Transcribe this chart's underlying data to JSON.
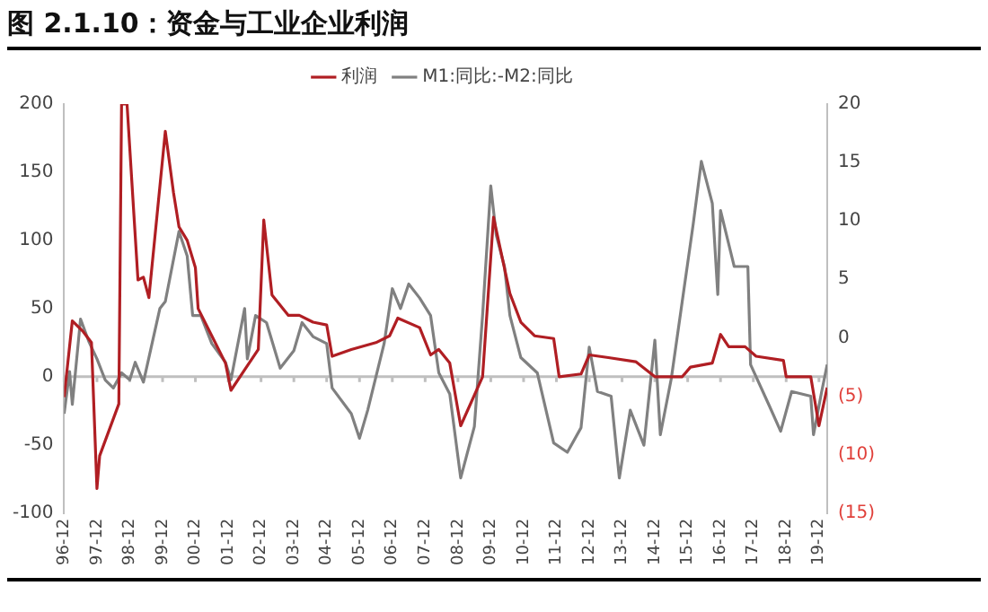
{
  "chart_data": {
    "type": "line",
    "title": "图 2.1.10：资金与工业企业利润",
    "legend": "top",
    "xlim": [
      "1996-12",
      "2020-03"
    ],
    "xticks": [
      {
        "value": "1996-12",
        "label": "96-12"
      },
      {
        "value": "1997-12",
        "label": "97-12"
      },
      {
        "value": "1998-12",
        "label": "98-12"
      },
      {
        "value": "1999-12",
        "label": "99-12"
      },
      {
        "value": "2000-12",
        "label": "00-12"
      },
      {
        "value": "2001-12",
        "label": "01-12"
      },
      {
        "value": "2002-12",
        "label": "02-12"
      },
      {
        "value": "2003-12",
        "label": "03-12"
      },
      {
        "value": "2004-12",
        "label": "04-12"
      },
      {
        "value": "2005-12",
        "label": "05-12"
      },
      {
        "value": "2006-12",
        "label": "06-12"
      },
      {
        "value": "2007-12",
        "label": "07-12"
      },
      {
        "value": "2008-12",
        "label": "08-12"
      },
      {
        "value": "2009-12",
        "label": "09-12"
      },
      {
        "value": "2010-12",
        "label": "10-12"
      },
      {
        "value": "2011-12",
        "label": "11-12"
      },
      {
        "value": "2012-12",
        "label": "12-12"
      },
      {
        "value": "2013-12",
        "label": "13-12"
      },
      {
        "value": "2014-12",
        "label": "14-12"
      },
      {
        "value": "2015-12",
        "label": "15-12"
      },
      {
        "value": "2016-12",
        "label": "16-12"
      },
      {
        "value": "2017-12",
        "label": "17-12"
      },
      {
        "value": "2018-12",
        "label": "18-12"
      },
      {
        "value": "2019-12",
        "label": "19-12"
      }
    ],
    "ylim": [
      -100,
      200
    ],
    "yticks": [
      -100,
      -50,
      0,
      50,
      100,
      150,
      200
    ],
    "y2lim": [
      -15,
      20
    ],
    "y2ticks": [
      {
        "value": -15,
        "label": "(15)"
      },
      {
        "value": -10,
        "label": "(10)"
      },
      {
        "value": -5,
        "label": "(5)"
      },
      0,
      5,
      10,
      15,
      20
    ],
    "ref_lines": [
      {
        "axis": "y",
        "value": 0,
        "color": "#bfbfbf"
      }
    ],
    "marker": "none",
    "line_style": "solid",
    "series": [
      {
        "name": "利润",
        "color": "#b01e23",
        "x": [
          "1996-12",
          "1997-03",
          "1997-07",
          "1997-10",
          "1997-12",
          "1998-01",
          "1998-08",
          "1998-09",
          "1998-11",
          "1999-03",
          "1999-05",
          "1999-07",
          "2000-01",
          "2000-04",
          "2000-06",
          "2000-09",
          "2000-12",
          "2001-01",
          "2001-06",
          "2001-11",
          "2002-01",
          "2002-06",
          "2002-11",
          "2003-01",
          "2003-04",
          "2003-10",
          "2004-02",
          "2004-07",
          "2004-12",
          "2005-02",
          "2005-09",
          "2006-06",
          "2006-11",
          "2007-02",
          "2007-10",
          "2008-02",
          "2008-05",
          "2008-09",
          "2009-01",
          "2009-09",
          "2010-01",
          "2010-07",
          "2010-11",
          "2011-04",
          "2011-11",
          "2012-01",
          "2012-09",
          "2012-12",
          "2013-07",
          "2014-05",
          "2014-12",
          "2015-10",
          "2016-01",
          "2016-09",
          "2016-12",
          "2017-03",
          "2017-09",
          "2018-01",
          "2018-11",
          "2018-12",
          "2019-09",
          "2019-12",
          "2020-03"
        ],
        "values": [
          -15,
          41,
          33,
          25,
          -82,
          -58,
          -20,
          200,
          200,
          71,
          73,
          58,
          180,
          135,
          110,
          100,
          80,
          50,
          30,
          10,
          -10,
          5,
          20,
          115,
          60,
          45,
          45,
          40,
          38,
          15,
          20,
          25,
          30,
          43,
          36,
          16,
          20,
          10,
          -36,
          0,
          117,
          61,
          40,
          30,
          28,
          0,
          2,
          16,
          14,
          11,
          0,
          0,
          7,
          10,
          31,
          22,
          22,
          15,
          12,
          0,
          0,
          -36,
          -8
        ]
      },
      {
        "name": "M1:同比:-M2:同比",
        "color": "#808080",
        "axis": "y2",
        "x": [
          "1996-12",
          "1997-02",
          "1997-03",
          "1997-06",
          "1997-09",
          "1997-12",
          "1998-03",
          "1998-06",
          "1998-09",
          "1998-12",
          "1999-02",
          "1999-05",
          "1999-11",
          "2000-01",
          "2000-06",
          "2000-09",
          "2000-11",
          "2001-02",
          "2001-06",
          "2001-11",
          "2002-01",
          "2002-06",
          "2002-07",
          "2002-10",
          "2003-02",
          "2003-07",
          "2003-12",
          "2004-03",
          "2004-07",
          "2004-12",
          "2005-02",
          "2005-09",
          "2005-12",
          "2006-03",
          "2006-09",
          "2006-12",
          "2007-03",
          "2007-06",
          "2007-10",
          "2008-02",
          "2008-05",
          "2008-09",
          "2009-01",
          "2009-06",
          "2009-09",
          "2009-12",
          "2010-02",
          "2010-05",
          "2010-07",
          "2010-11",
          "2011-05",
          "2011-11",
          "2012-04",
          "2012-09",
          "2012-12",
          "2013-03",
          "2013-08",
          "2013-11",
          "2014-03",
          "2014-08",
          "2014-12",
          "2015-02",
          "2015-06",
          "2015-10",
          "2016-02",
          "2016-05",
          "2016-09",
          "2016-11",
          "2016-12",
          "2017-05",
          "2017-10",
          "2017-11",
          "2018-06",
          "2018-10",
          "2019-02",
          "2019-09",
          "2019-10",
          "2020-01",
          "2020-03"
        ],
        "values": [
          -6.5,
          -2.9,
          -5.7,
          1.6,
          -0.3,
          -1.8,
          -3.6,
          -4.3,
          -3,
          -3.6,
          -2.1,
          -3.8,
          2.5,
          3.1,
          9.1,
          7,
          1.9,
          1.9,
          -0.5,
          -2.1,
          -3.6,
          2.5,
          -1.8,
          1.9,
          1.3,
          -2.6,
          -1.1,
          1.3,
          0.1,
          -0.5,
          -4.3,
          -6.5,
          -8.6,
          -6.2,
          -0.5,
          4.2,
          2.5,
          4.6,
          3.4,
          1.9,
          -3,
          -4.8,
          -12,
          -7.6,
          1.9,
          13,
          8.8,
          6.1,
          1.9,
          -1.7,
          -3,
          -9,
          -9.8,
          -7.7,
          -0.8,
          -4.6,
          -5,
          -12,
          -6.2,
          -9.2,
          -0.2,
          -8.3,
          -3.5,
          3.1,
          9.7,
          15.1,
          11.5,
          3.7,
          10.9,
          6.1,
          6.1,
          -2.3,
          -5.9,
          -8,
          -4.6,
          -5,
          -8.3,
          -4.6,
          -2.3
        ]
      }
    ]
  }
}
